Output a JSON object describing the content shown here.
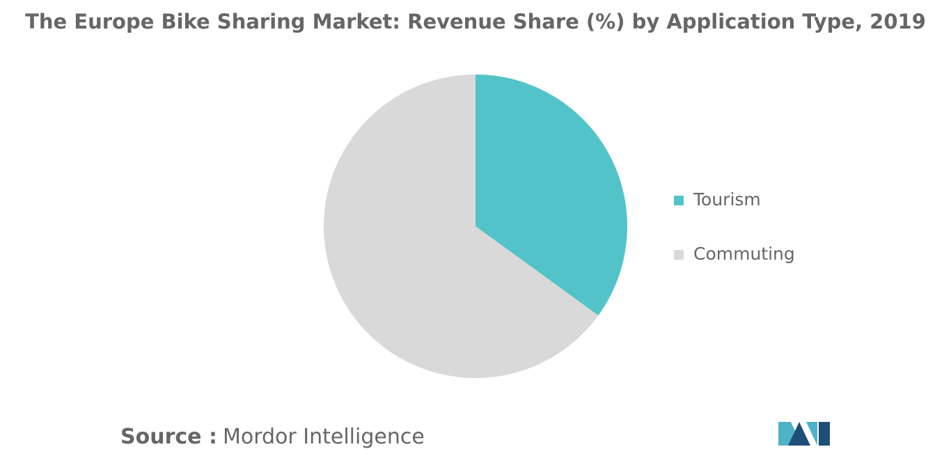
{
  "chart_data": {
    "type": "pie",
    "title": "The Europe Bike Sharing Market: Revenue Share (%) by Application Type, 2019",
    "categories": [
      "Tourism",
      "Commuting"
    ],
    "values": [
      35,
      65
    ],
    "colors": [
      "#52c4c9",
      "#d9d9d9"
    ],
    "legend": "right",
    "source_label": "Source :",
    "source": "Mordor Intelligence"
  }
}
